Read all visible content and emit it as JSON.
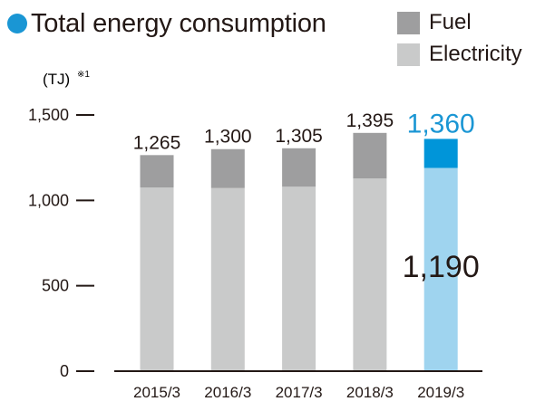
{
  "chart_data": {
    "type": "bar",
    "stacked": true,
    "title": "Total energy consumption",
    "unit": "(TJ)",
    "unit_note": "※1",
    "categories": [
      "2015/3",
      "2016/3",
      "2017/3",
      "2018/3",
      "2019/3"
    ],
    "series": [
      {
        "name": "Electricity",
        "values": [
          1075,
          1072,
          1080,
          1128,
          1190
        ]
      },
      {
        "name": "Fuel",
        "values": [
          190,
          228,
          225,
          267,
          170
        ]
      }
    ],
    "totals": [
      "1,265",
      "1,300",
      "1,305",
      "1,395",
      "1,360"
    ],
    "inside_label": "1,190",
    "yticks": [
      {
        "value": 0,
        "label": "0"
      },
      {
        "value": 500,
        "label": "500"
      },
      {
        "value": 1000,
        "label": "1,000"
      },
      {
        "value": 1500,
        "label": "1,500"
      }
    ],
    "ylim": [
      0,
      1500
    ],
    "legend_position": "top-right",
    "highlight_index": 4,
    "colors": {
      "fuel": "#9e9e9f",
      "electricity": "#c9caca",
      "fuel_highlight": "#0095d9",
      "electricity_highlight": "#9fd4ef",
      "accent": "#1a96d4",
      "text": "#231815",
      "axis": "#231815"
    }
  }
}
